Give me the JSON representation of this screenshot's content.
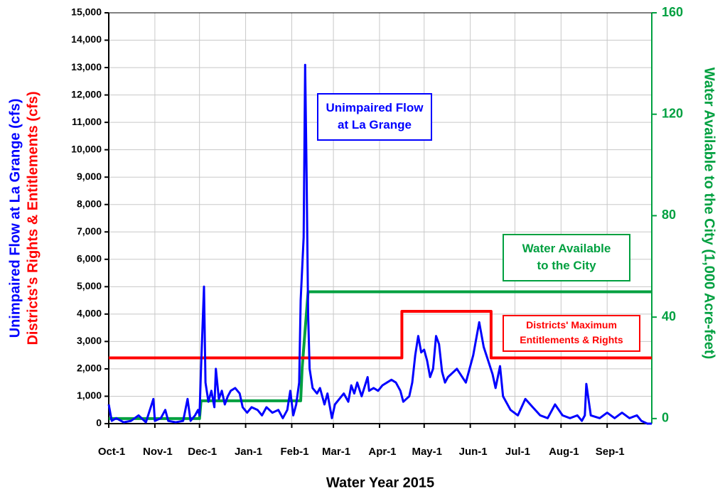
{
  "chart_data": {
    "type": "line",
    "xlabel": "Water Year 2015",
    "ylabel": [
      "Unimpaired Flow at La Grange (cfs)",
      "Districts's Rights & Entitlements (cfs)"
    ],
    "y2label": "Water Available to the City (1,000 Acre-feet)",
    "xlim": [
      0,
      365
    ],
    "xticks": [
      {
        "value": 0,
        "label": "Oct-1"
      },
      {
        "value": 31,
        "label": "Nov-1"
      },
      {
        "value": 61,
        "label": "Dec-1"
      },
      {
        "value": 92,
        "label": "Jan-1"
      },
      {
        "value": 123,
        "label": "Feb-1"
      },
      {
        "value": 151,
        "label": "Mar-1"
      },
      {
        "value": 182,
        "label": "Apr-1"
      },
      {
        "value": 212,
        "label": "May-1"
      },
      {
        "value": 243,
        "label": "Jun-1"
      },
      {
        "value": 273,
        "label": "Jul-1"
      },
      {
        "value": 304,
        "label": "Aug-1"
      },
      {
        "value": 335,
        "label": "Sep-1"
      }
    ],
    "ylim": [
      0,
      15000
    ],
    "yticks": [
      0,
      {
        "value": 1000,
        "label": "1,000"
      },
      {
        "value": 2000,
        "label": "2,000"
      },
      {
        "value": 3000,
        "label": "3,000"
      },
      {
        "value": 4000,
        "label": "4,000"
      },
      {
        "value": 5000,
        "label": "5,000"
      },
      {
        "value": 6000,
        "label": "6,000"
      },
      {
        "value": 7000,
        "label": "7,000"
      },
      {
        "value": 8000,
        "label": "8,000"
      },
      {
        "value": 9000,
        "label": "9,000"
      },
      {
        "value": 10000,
        "label": "10,000"
      },
      {
        "value": 11000,
        "label": "11,000"
      },
      {
        "value": 12000,
        "label": "12,000"
      },
      {
        "value": 13000,
        "label": "13,000"
      },
      {
        "value": 14000,
        "label": "14,000"
      },
      {
        "value": 15000,
        "label": "15,000"
      }
    ],
    "y2lim": [
      -2,
      160
    ],
    "y2ticks": [
      0,
      40,
      80,
      120,
      160
    ],
    "grid": true,
    "series": [
      {
        "name": "Unimpaired Flow at La Grange",
        "color": "#0000ff",
        "x": [
          0,
          2,
          5,
          10,
          15,
          20,
          25,
          30,
          31,
          35,
          38,
          40,
          45,
          50,
          53,
          55,
          58,
          60,
          61,
          62,
          64,
          65,
          67,
          69,
          71,
          72,
          74,
          76,
          78,
          80,
          82,
          85,
          88,
          90,
          93,
          96,
          100,
          103,
          106,
          110,
          114,
          117,
          120,
          122,
          124,
          126,
          128,
          129,
          131,
          132,
          133,
          134,
          135,
          137,
          140,
          142,
          145,
          147,
          150,
          152,
          155,
          158,
          161,
          163,
          165,
          167,
          170,
          174,
          175,
          178,
          181,
          184,
          187,
          190,
          193,
          196,
          198,
          200,
          202,
          204,
          206,
          208,
          210,
          212,
          214,
          216,
          218,
          220,
          222,
          224,
          226,
          228,
          234,
          240,
          245,
          249,
          252,
          255,
          258,
          260,
          263,
          265,
          270,
          275,
          280,
          285,
          290,
          295,
          300,
          305,
          310,
          315,
          318,
          320,
          321,
          324,
          330,
          335,
          340,
          345,
          350,
          355,
          358,
          362,
          365
        ],
        "values": [
          700,
          100,
          200,
          50,
          100,
          300,
          50,
          900,
          100,
          200,
          500,
          100,
          50,
          100,
          900,
          100,
          300,
          500,
          300,
          2000,
          5000,
          1500,
          800,
          1200,
          600,
          2000,
          900,
          1200,
          700,
          1000,
          1200,
          1300,
          1100,
          600,
          400,
          600,
          500,
          300,
          600,
          400,
          500,
          200,
          500,
          1200,
          300,
          700,
          1500,
          4500,
          6800,
          13100,
          9000,
          4000,
          2000,
          1300,
          1100,
          1300,
          700,
          1100,
          200,
          700,
          900,
          1100,
          800,
          1400,
          1100,
          1500,
          1000,
          1700,
          1200,
          1300,
          1200,
          1400,
          1500,
          1600,
          1500,
          1200,
          800,
          900,
          1000,
          1500,
          2500,
          3200,
          2600,
          2700,
          2300,
          1700,
          2000,
          3200,
          2900,
          1900,
          1500,
          1700,
          2000,
          1500,
          2500,
          3700,
          2800,
          2300,
          1800,
          1300,
          2100,
          1000,
          500,
          300,
          900,
          600,
          300,
          200,
          700,
          300,
          200,
          300,
          100,
          300,
          1450,
          300,
          200,
          400,
          200,
          400,
          200,
          300,
          100,
          0,
          0
        ]
      },
      {
        "name": "Districts' Maximum Entitlements & Rights",
        "color": "#ff0000",
        "x": [
          0,
          197,
          197,
          257,
          257,
          365
        ],
        "values": [
          2400,
          2400,
          4100,
          4100,
          2400,
          2400
        ]
      },
      {
        "name": "Water Available to the City",
        "color": "#00a040",
        "axis": "y2",
        "x": [
          0,
          61,
          62,
          129,
          130,
          134,
          365
        ],
        "values": [
          0,
          0,
          7,
          7,
          20,
          50,
          50
        ]
      }
    ],
    "annotations": [
      {
        "lines": [
          "Unimpaired Flow",
          "at La Grange"
        ],
        "color": "#0000ff"
      },
      {
        "lines": [
          "Water Available",
          "to the City"
        ],
        "color": "#00a040"
      },
      {
        "lines": [
          "Districts' Maximum",
          "Entitlements & Rights"
        ],
        "color": "#ff0000"
      }
    ]
  }
}
